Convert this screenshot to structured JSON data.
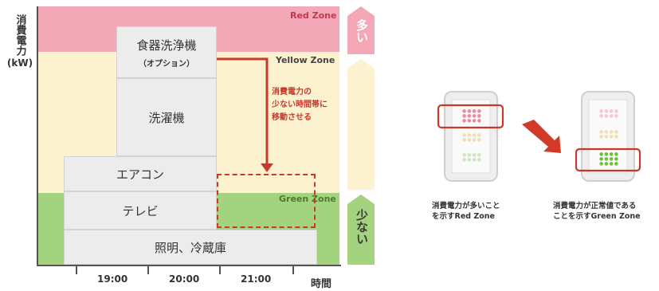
{
  "y_axis_label": {
    "line1": "消費電力",
    "line2": "(kW)"
  },
  "x_axis_label": "時間",
  "ticks": [
    "19:00",
    "20:00",
    "21:00"
  ],
  "zones": {
    "red": {
      "label": "Red Zone",
      "color": "#f0a0b0"
    },
    "yellow": {
      "label": "Yellow Zone",
      "color": "#fdf2cf"
    },
    "green": {
      "label": "Green Zone",
      "color": "#9fd07a"
    }
  },
  "blocks": {
    "dishwasher": "食器洗浄機",
    "dishwasher_note": "（オプション）",
    "washer": "洗濯機",
    "aircon": "エアコン",
    "tv": "テレビ",
    "base": "照明、冷蔵庫"
  },
  "annotation": {
    "line1": "消費電力の",
    "line2": "少ない時間帯に",
    "line3": "移動させる"
  },
  "side_scale": {
    "top": "多い",
    "bottom": "少ない"
  },
  "device_captions": {
    "left_line1": "消費電力が多いこと",
    "left_line2": "を示すRed Zone",
    "right_line1": "消費電力が正常値である",
    "right_line2": "ことを示すGreen Zone"
  },
  "colors": {
    "red_accent": "#c8392b",
    "green_dot": "#6fbf3a",
    "pink_dot": "#ec8b9d"
  }
}
